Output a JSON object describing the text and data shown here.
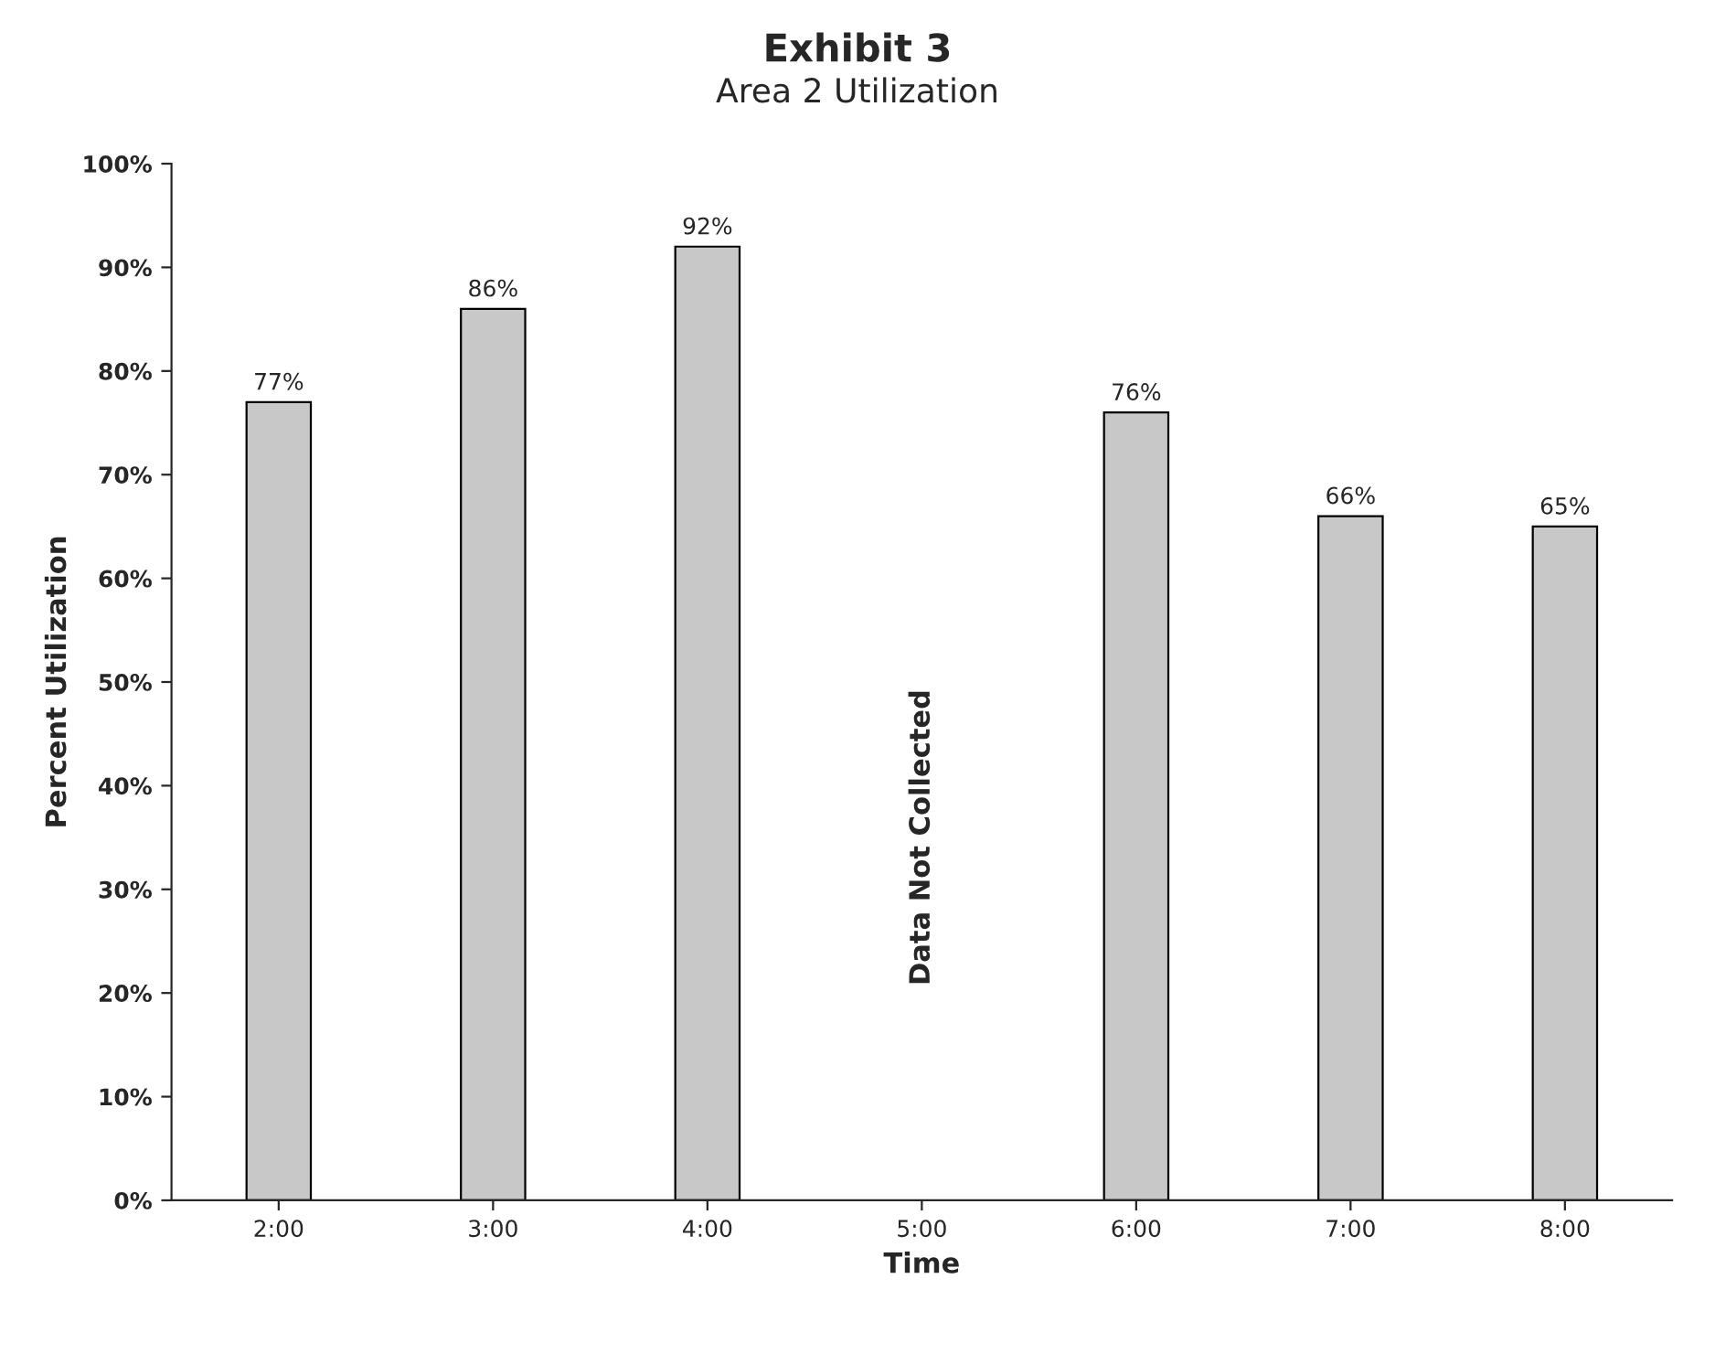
{
  "chart_data": {
    "type": "bar",
    "title": "Exhibit 3",
    "subtitle": "Area 2 Utilization",
    "xlabel": "Time",
    "ylabel": "Percent Utilization",
    "categories": [
      "2:00",
      "3:00",
      "4:00",
      "5:00",
      "6:00",
      "7:00",
      "8:00"
    ],
    "values": [
      77,
      86,
      92,
      null,
      76,
      66,
      65
    ],
    "value_labels": [
      "77%",
      "86%",
      "92%",
      null,
      "76%",
      "66%",
      "65%"
    ],
    "color": "#c8c8c8",
    "ylim": [
      0,
      100
    ],
    "yticks": [
      {
        "value": 0,
        "label": "0%"
      },
      {
        "value": 10,
        "label": "10%"
      },
      {
        "value": 20,
        "label": "20%"
      },
      {
        "value": 30,
        "label": "30%"
      },
      {
        "value": 40,
        "label": "40%"
      },
      {
        "value": 50,
        "label": "50%"
      },
      {
        "value": 60,
        "label": "60%"
      },
      {
        "value": 70,
        "label": "70%"
      },
      {
        "value": 80,
        "label": "80%"
      },
      {
        "value": 90,
        "label": "90%"
      },
      {
        "value": 100,
        "label": "100%"
      }
    ],
    "annotations": [
      "Data Not Collected"
    ],
    "grid": false,
    "legend": false
  }
}
